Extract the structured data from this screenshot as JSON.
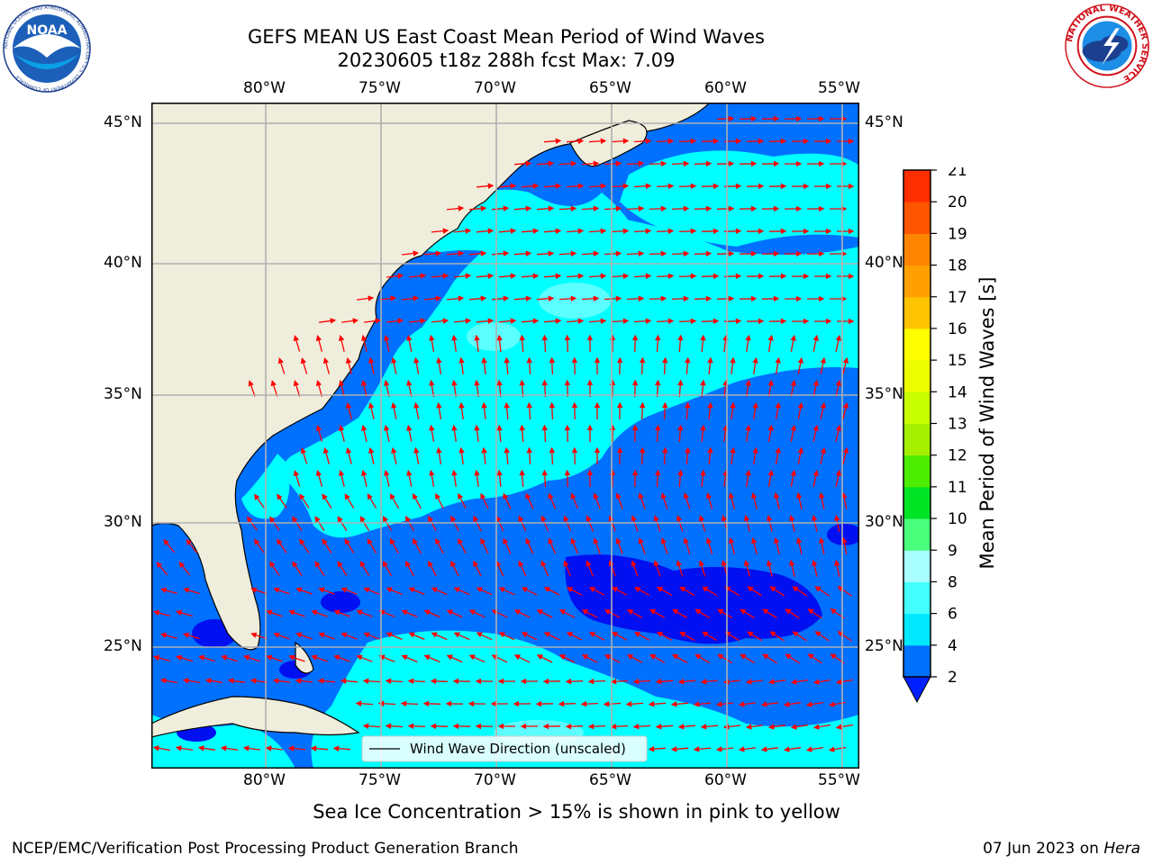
{
  "header": {
    "title_line1": "GEFS MEAN US East Coast Mean Period of Wind Waves",
    "title_line2": "20230605 t18z 288h fcst   Max: 7.09"
  },
  "logos": {
    "noaa_text": "NOAA",
    "noaa_ring_text": "NATIONAL OCEANIC AND ATMOSPHERIC ADMINISTRATION • U.S. DEPARTMENT OF COMMERCE",
    "nws_ring_text": "NATIONAL WEATHER SERVICE"
  },
  "map": {
    "lon_labels": [
      "80°W",
      "75°W",
      "70°W",
      "65°W",
      "60°W",
      "55°W"
    ],
    "lat_labels": [
      "45°N",
      "40°N",
      "35°N",
      "30°N",
      "25°N"
    ],
    "legend_label": "Wind Wave Direction (unscaled)"
  },
  "colorbar": {
    "label": "Mean Period of Wind Waves [s]",
    "ticks": [
      "2",
      "4",
      "6",
      "8",
      "9",
      "10",
      "11",
      "12",
      "13",
      "14",
      "15",
      "16",
      "17",
      "18",
      "19",
      "20",
      "21"
    ],
    "colors": [
      "#0070ff",
      "#00e8ff",
      "#44ffff",
      "#a8ffff",
      "#49ff7c",
      "#00e426",
      "#4cec00",
      "#a4f000",
      "#c8ff00",
      "#ecff00",
      "#ffff00",
      "#ffc400",
      "#ffa000",
      "#ff8400",
      "#ff5400",
      "#ff2e00"
    ],
    "extend_color": "#0020ff"
  },
  "field_colors": {
    "ocean_2_4": "#0070ff",
    "ocean_4_6": "#00ffff",
    "ocean_lt_2": "#0010f0",
    "ocean_6_8": "#50ffff",
    "land": "#efeddc",
    "arrow": "#ff0000"
  },
  "footer": {
    "sea_ice_note": "Sea Ice Concentration > 15% is shown in pink to yellow",
    "credit": "NCEP/EMC/Verification Post Processing Product Generation Branch",
    "date": "07 Jun 2023 on ",
    "machine": "Hera"
  }
}
